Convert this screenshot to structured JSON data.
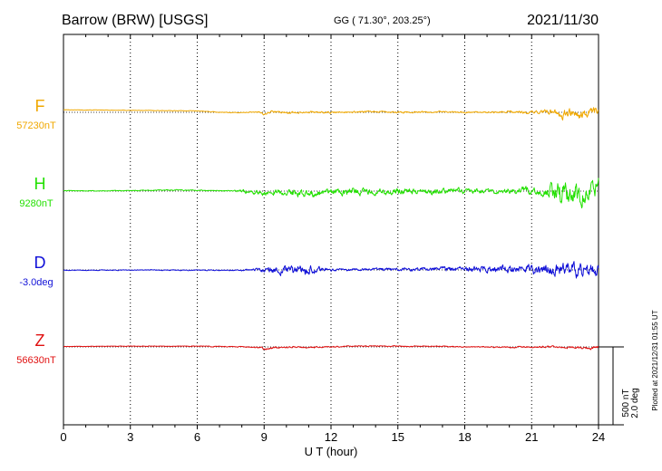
{
  "header": {
    "station": "Barrow (BRW)  [USGS]",
    "coords": "GG ( 71.30°, 203.25°)",
    "date": "2021/11/30"
  },
  "footer": {
    "plotted": "Plotted at 2021/12/31 01:55 UT"
  },
  "chart_data": {
    "type": "line",
    "xlabel": "U T (hour)",
    "xlim": [
      0,
      24
    ],
    "xticks": [
      "0",
      "3",
      "6",
      "9",
      "12",
      "15",
      "18",
      "21",
      "24"
    ],
    "grid": "dotted vertical lines every 3 hours",
    "scale_bar": {
      "amplitude": "500 nT",
      "angle": "2.0 deg"
    },
    "series": [
      {
        "name": "F",
        "baseline": "57230nT",
        "color": "#f0a800",
        "anchors": [
          [
            0,
            0.35
          ],
          [
            2,
            0.3
          ],
          [
            4,
            0.25
          ],
          [
            6,
            0.2
          ],
          [
            7,
            0.0
          ],
          [
            8,
            -0.05
          ],
          [
            8.8,
            0.1
          ],
          [
            9,
            -0.35
          ],
          [
            9.3,
            0.1
          ],
          [
            10,
            -0.05
          ],
          [
            11,
            0.05
          ],
          [
            12,
            -0.05
          ],
          [
            13,
            0.05
          ],
          [
            14,
            0.1
          ],
          [
            15,
            0.0
          ],
          [
            16,
            0.05
          ],
          [
            17,
            0.05
          ],
          [
            18,
            0.0
          ],
          [
            19,
            0.0
          ],
          [
            20,
            0.05
          ],
          [
            21,
            -0.05
          ],
          [
            21.5,
            0.1
          ],
          [
            22,
            0.3
          ],
          [
            22.4,
            -0.4
          ],
          [
            22.8,
            0.2
          ],
          [
            23.2,
            -0.5
          ],
          [
            23.6,
            0.05
          ],
          [
            24,
            0.3
          ]
        ],
        "noise": [
          [
            0,
            0.02
          ],
          [
            8.5,
            0.04
          ],
          [
            9,
            0.12
          ],
          [
            12,
            0.1
          ],
          [
            19,
            0.08
          ],
          [
            21.5,
            0.2
          ],
          [
            22.3,
            0.45
          ],
          [
            24,
            0.45
          ]
        ]
      },
      {
        "name": "H",
        "baseline": "9280nT",
        "color": "#22e000",
        "anchors": [
          [
            0,
            0.05
          ],
          [
            2,
            0.05
          ],
          [
            4,
            0.1
          ],
          [
            5,
            0.15
          ],
          [
            6,
            0.1
          ],
          [
            7.5,
            0.05
          ],
          [
            8,
            -0.05
          ],
          [
            8.5,
            -0.2
          ],
          [
            9,
            -0.35
          ],
          [
            9.5,
            -0.1
          ],
          [
            10,
            -0.15
          ],
          [
            10.8,
            -0.4
          ],
          [
            11.5,
            -0.2
          ],
          [
            12,
            -0.1
          ],
          [
            13,
            -0.05
          ],
          [
            14,
            -0.1
          ],
          [
            15,
            -0.05
          ],
          [
            16,
            -0.1
          ],
          [
            16.5,
            -0.2
          ],
          [
            17,
            0.05
          ],
          [
            18,
            0.05
          ],
          [
            19,
            0.0
          ],
          [
            20,
            0.05
          ],
          [
            20.5,
            0.25
          ],
          [
            21,
            0.1
          ],
          [
            21.5,
            -0.1
          ],
          [
            22,
            0.2
          ],
          [
            22.5,
            -0.4
          ],
          [
            23,
            -0.2
          ],
          [
            23.4,
            -0.8
          ],
          [
            23.8,
            0.4
          ],
          [
            24,
            0.45
          ]
        ],
        "noise": [
          [
            0,
            0.03
          ],
          [
            7.5,
            0.06
          ],
          [
            8,
            0.18
          ],
          [
            11,
            0.4
          ],
          [
            16,
            0.3
          ],
          [
            19.5,
            0.25
          ],
          [
            21.5,
            0.45
          ],
          [
            22.3,
            1.15
          ],
          [
            24,
            1.05
          ]
        ]
      },
      {
        "name": "D",
        "baseline": "-3.0deg",
        "color": "#1010d8",
        "anchors": [
          [
            0,
            -0.05
          ],
          [
            2,
            -0.05
          ],
          [
            4,
            0.0
          ],
          [
            6,
            -0.05
          ],
          [
            7,
            -0.05
          ],
          [
            8,
            0.0
          ],
          [
            9,
            0.05
          ],
          [
            9.5,
            -0.05
          ],
          [
            10,
            -0.1
          ],
          [
            10.7,
            -0.3
          ],
          [
            11,
            0.05
          ],
          [
            12,
            0.0
          ],
          [
            13,
            0.05
          ],
          [
            14,
            0.1
          ],
          [
            15,
            0.05
          ],
          [
            16,
            0.1
          ],
          [
            17,
            0.2
          ],
          [
            18,
            0.1
          ],
          [
            18.5,
            0.15
          ],
          [
            19.5,
            0.05
          ],
          [
            20.5,
            0.1
          ],
          [
            21.5,
            0.05
          ],
          [
            22,
            -0.1
          ],
          [
            22.5,
            0.1
          ],
          [
            23,
            -0.1
          ],
          [
            24,
            -0.2
          ]
        ],
        "noise": [
          [
            0,
            0.03
          ],
          [
            7.5,
            0.06
          ],
          [
            8.5,
            0.12
          ],
          [
            9,
            0.3
          ],
          [
            10.7,
            0.6
          ],
          [
            12,
            0.12
          ],
          [
            16,
            0.2
          ],
          [
            19.5,
            0.35
          ],
          [
            21.5,
            0.55
          ],
          [
            22.3,
            0.75
          ],
          [
            24,
            0.75
          ]
        ]
      },
      {
        "name": "Z",
        "baseline": "56630nT",
        "color": "#e01010",
        "anchors": [
          [
            0,
            0.05
          ],
          [
            2,
            0.1
          ],
          [
            4,
            0.1
          ],
          [
            6,
            0.1
          ],
          [
            7,
            0.05
          ],
          [
            8,
            0.0
          ],
          [
            8.8,
            -0.05
          ],
          [
            9,
            -0.3
          ],
          [
            9.5,
            -0.05
          ],
          [
            10.5,
            0.0
          ],
          [
            11,
            -0.05
          ],
          [
            12,
            0.0
          ],
          [
            13,
            0.1
          ],
          [
            14,
            0.1
          ],
          [
            15,
            0.1
          ],
          [
            16,
            0.05
          ],
          [
            17,
            0.1
          ],
          [
            18,
            0.0
          ],
          [
            19,
            0.0
          ],
          [
            20,
            -0.05
          ],
          [
            21,
            -0.05
          ],
          [
            22,
            0.05
          ],
          [
            22.6,
            -0.1
          ],
          [
            23,
            0.0
          ],
          [
            23.6,
            -0.3
          ],
          [
            24,
            0.05
          ]
        ],
        "noise": [
          [
            0,
            0.02
          ],
          [
            8.5,
            0.05
          ],
          [
            9,
            0.12
          ],
          [
            12,
            0.06
          ],
          [
            19,
            0.06
          ],
          [
            21.5,
            0.1
          ],
          [
            24,
            0.15
          ]
        ]
      }
    ]
  }
}
